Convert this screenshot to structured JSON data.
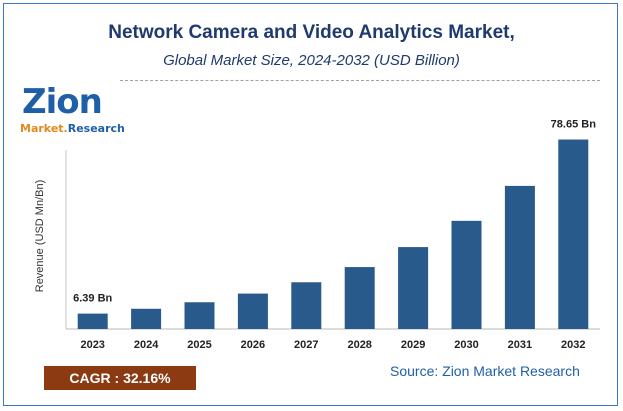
{
  "header": {
    "title": "Network Camera and Video Analytics Market,",
    "subtitle": "Global Market Size, 2024-2032 (USD Billion)"
  },
  "logo": {
    "word": "Zion",
    "sub_left": "Market.",
    "sub_right": "Research"
  },
  "footer": {
    "cagr": "CAGR :  32.16%",
    "source": "Source: Zion Market Research"
  },
  "colors": {
    "bar": "#285a8c",
    "title": "#1f3a6d",
    "cagr_bg": "#8b3a12",
    "frame": "#3a78c9"
  },
  "chart_data": {
    "type": "bar",
    "title": "Network Camera and Video Analytics Market,",
    "subtitle": "Global Market Size, 2024-2032 (USD Billion)",
    "xlabel": "",
    "ylabel": "Revenue (USD Mn/Bn)",
    "categories": [
      "2023",
      "2024",
      "2025",
      "2026",
      "2027",
      "2028",
      "2029",
      "2030",
      "2031",
      "2032"
    ],
    "values": [
      6.39,
      8.4,
      11.1,
      14.7,
      19.4,
      25.7,
      34.0,
      44.9,
      59.4,
      78.65
    ],
    "data_labels": [
      {
        "index": 0,
        "text": "6.39 Bn"
      },
      {
        "index": 9,
        "text": "78.65 Bn"
      }
    ],
    "ylim": [
      0,
      88
    ],
    "grid": false,
    "legend": "none"
  }
}
